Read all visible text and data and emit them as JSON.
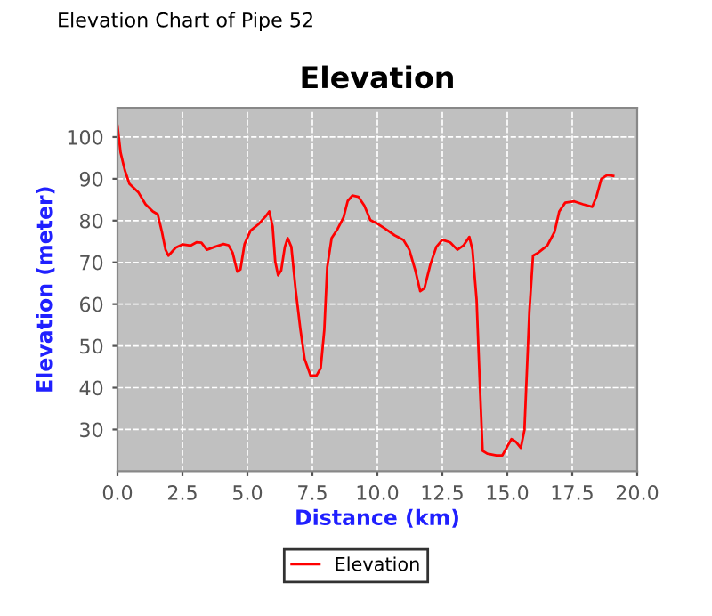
{
  "chart_data": {
    "type": "line",
    "title": "Elevation",
    "xlabel": "Distance (km)",
    "ylabel": "Elevation (meter)",
    "annotations": [
      "Elevation Chart of Pipe 52"
    ],
    "xlim": [
      0,
      20
    ],
    "ylim": [
      20,
      107
    ],
    "xticks": [
      {
        "value": 0,
        "label": "0.0"
      },
      {
        "value": 2.5,
        "label": "2.5"
      },
      {
        "value": 5,
        "label": "5.0"
      },
      {
        "value": 7.5,
        "label": "7.5"
      },
      {
        "value": 10,
        "label": "10.0"
      },
      {
        "value": 12.5,
        "label": "12.5"
      },
      {
        "value": 15,
        "label": "15.0"
      },
      {
        "value": 17.5,
        "label": "17.5"
      },
      {
        "value": 20,
        "label": "20.0"
      }
    ],
    "yticks": [
      30,
      40,
      50,
      60,
      70,
      80,
      90,
      100
    ],
    "grid": true,
    "legend": "bottom",
    "marker": "none",
    "line_style": "solid",
    "series": [
      {
        "name": "Elevation",
        "color": "#ff0000",
        "x": [
          0,
          0.12,
          0.28,
          0.46,
          0.81,
          1.08,
          1.36,
          1.55,
          1.71,
          1.85,
          1.96,
          2.24,
          2.51,
          2.81,
          3.04,
          3.23,
          3.44,
          3.74,
          4.08,
          4.27,
          4.43,
          4.61,
          4.73,
          4.89,
          5.12,
          5.42,
          5.7,
          5.84,
          5.97,
          6.07,
          6.18,
          6.3,
          6.44,
          6.55,
          6.69,
          6.85,
          7.04,
          7.2,
          7.43,
          7.66,
          7.82,
          7.96,
          8.07,
          8.24,
          8.47,
          8.7,
          8.86,
          9.04,
          9.27,
          9.5,
          9.73,
          9.97,
          10.31,
          10.66,
          11.0,
          11.23,
          11.46,
          11.65,
          11.81,
          12.04,
          12.27,
          12.5,
          12.8,
          13.08,
          13.31,
          13.54,
          13.66,
          13.82,
          13.96,
          14.05,
          14.23,
          14.58,
          14.81,
          14.97,
          15.16,
          15.34,
          15.52,
          15.66,
          15.85,
          15.99,
          16.19,
          16.54,
          16.82,
          17.0,
          17.23,
          17.58,
          17.92,
          18.27,
          18.43,
          18.62,
          18.85,
          19.08
        ],
        "values": [
          102.7,
          96.3,
          92.1,
          88.8,
          86.7,
          83.9,
          82.2,
          81.5,
          77.3,
          73.0,
          71.6,
          73.5,
          74.3,
          74.0,
          74.8,
          74.7,
          73.0,
          73.7,
          74.4,
          74.1,
          72.3,
          67.8,
          68.3,
          74.4,
          77.6,
          79.1,
          81.0,
          82.2,
          78.6,
          70.2,
          66.9,
          68.1,
          73.7,
          75.8,
          73.7,
          63.8,
          53.9,
          46.9,
          42.9,
          42.9,
          44.7,
          53.9,
          68.8,
          75.8,
          78.0,
          80.8,
          84.7,
          86.0,
          85.7,
          83.6,
          80.1,
          79.4,
          78.0,
          76.5,
          75.4,
          73.0,
          68.1,
          63.1,
          63.8,
          69.5,
          73.7,
          75.4,
          74.8,
          73.0,
          74.0,
          76.1,
          73.0,
          61.0,
          38.3,
          24.9,
          24.2,
          23.8,
          23.8,
          25.6,
          27.7,
          27.0,
          25.6,
          29.9,
          58.2,
          71.6,
          72.3,
          74.0,
          77.3,
          82.2,
          84.3,
          84.6,
          83.9,
          83.3,
          85.7,
          90.0,
          90.9,
          90.7
        ]
      }
    ]
  }
}
